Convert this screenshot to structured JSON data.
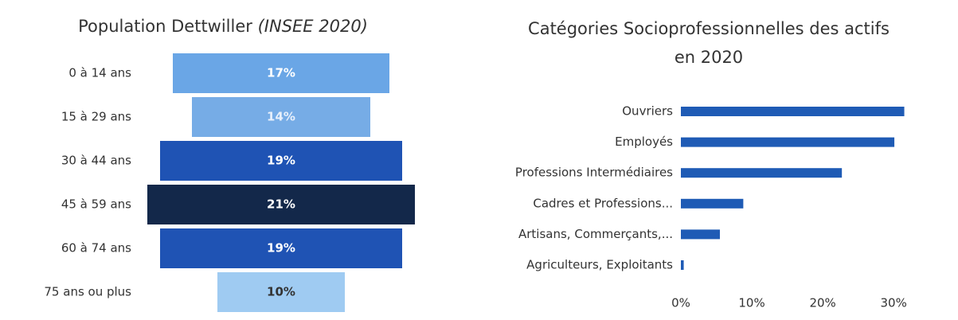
{
  "chart_data": [
    {
      "type": "funnel",
      "title": "Population Dettwiller",
      "source": "(INSEE 2020)",
      "categories": [
        "0 à 14 ans",
        "15 à 29 ans",
        "30 à 44 ans",
        "45 à 59 ans",
        "60 à 74 ans",
        "75 ans ou plus"
      ],
      "values": [
        17,
        14,
        19,
        21,
        19,
        10
      ],
      "value_labels": [
        "17%",
        "14%",
        "19%",
        "21%",
        "19%",
        "10%"
      ],
      "colors": [
        "#6aa6e6",
        "#76ace6",
        "#1f53b4",
        "#13284a",
        "#1f53b4",
        "#9fcbf2"
      ],
      "label_colors": [
        "#ffffff",
        "#e8f0fb",
        "#ffffff",
        "#ffffff",
        "#ffffff",
        "#333333"
      ]
    },
    {
      "type": "bar",
      "orientation": "horizontal",
      "title": "Catégories Socioprofessionnelles des actifs en 2020",
      "categories": [
        "Ouvriers",
        "Employés",
        "Professions Intermédiaires",
        "Cadres et Professions...",
        "Artisans, Commerçants,...",
        "Agriculteurs, Exploitants"
      ],
      "values": [
        31.5,
        30.1,
        22.7,
        8.8,
        5.5,
        0.4
      ],
      "color": "#1f5bb5",
      "xlim": [
        0,
        32
      ],
      "xticks": [
        {
          "value": 0,
          "label": "0%"
        },
        {
          "value": 10,
          "label": "10%"
        },
        {
          "value": 20,
          "label": "20%"
        },
        {
          "value": 30,
          "label": "30%"
        }
      ],
      "grid": false
    }
  ]
}
